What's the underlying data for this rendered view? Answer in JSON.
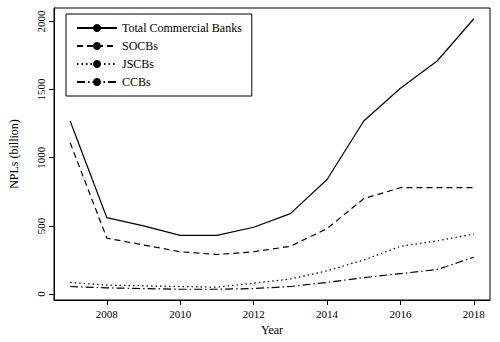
{
  "chart_data": {
    "type": "line",
    "x_label": "Year",
    "y_label": "NPLs (billion)",
    "x": [
      2007,
      2008,
      2009,
      2010,
      2011,
      2012,
      2013,
      2014,
      2015,
      2016,
      2017,
      2018
    ],
    "series": [
      {
        "name": "Total Commercial Banks",
        "color": "#000000",
        "line_style": "solid",
        "values": [
          1270,
          560,
          500,
          430,
          430,
          490,
          590,
          840,
          1270,
          1510,
          1710,
          2020
        ]
      },
      {
        "name": "SOCBs",
        "color": "#000000",
        "line_style": "dashed",
        "values": [
          1110,
          410,
          360,
          310,
          290,
          310,
          350,
          480,
          700,
          780,
          780,
          780
        ]
      },
      {
        "name": "JSCBs",
        "color": "#000000",
        "line_style": "dotted",
        "values": [
          85,
          65,
          60,
          55,
          50,
          80,
          110,
          170,
          250,
          350,
          390,
          440
        ]
      },
      {
        "name": "CCBs",
        "color": "#000000",
        "line_style": "dashdot",
        "values": [
          55,
          45,
          40,
          35,
          35,
          40,
          55,
          85,
          120,
          150,
          180,
          270
        ]
      }
    ],
    "xlim": [
      2006.56,
      2018.44
    ],
    "xticks": [
      2008,
      2010,
      2012,
      2014,
      2016,
      2018
    ],
    "ylim": [
      -44,
      2099
    ],
    "yticks": [
      0,
      500,
      1000,
      1500,
      2000
    ],
    "grid": false,
    "legend": "upper left"
  }
}
